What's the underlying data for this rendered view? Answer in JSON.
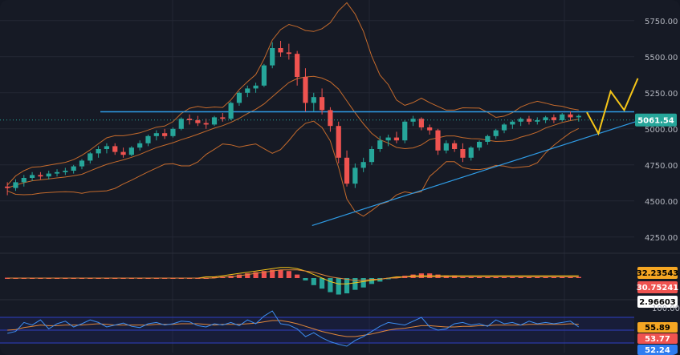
{
  "chart_data": {
    "type": "candlestick",
    "price_axis": {
      "ticks": [
        "5750.00",
        "5500.00",
        "5250.00",
        "5000.00",
        "4750.00",
        "4500.00",
        "4250.00"
      ],
      "tick_values": [
        5750,
        5500,
        5250,
        5000,
        4750,
        4500,
        4250
      ],
      "ylim": [
        4160,
        5860
      ]
    },
    "last_price_label": "5061.54",
    "last_price": 5061.54,
    "resistance_level": 5118,
    "support_trendline": {
      "from": [
        0.459,
        4330
      ],
      "to": [
        0.935,
        5050
      ]
    },
    "projection_path": [
      [
        0.863,
        5115
      ],
      [
        0.88,
        4968
      ],
      [
        0.898,
        5260
      ],
      [
        0.918,
        5130
      ],
      [
        0.938,
        5350
      ]
    ],
    "candles": [
      {
        "o": 4600,
        "h": 4630,
        "l": 4540,
        "c": 4590
      },
      {
        "o": 4590,
        "h": 4650,
        "l": 4570,
        "c": 4630
      },
      {
        "o": 4630,
        "h": 4680,
        "l": 4600,
        "c": 4660
      },
      {
        "o": 4660,
        "h": 4700,
        "l": 4640,
        "c": 4680
      },
      {
        "o": 4680,
        "h": 4700,
        "l": 4650,
        "c": 4670
      },
      {
        "o": 4670,
        "h": 4710,
        "l": 4650,
        "c": 4690
      },
      {
        "o": 4690,
        "h": 4720,
        "l": 4670,
        "c": 4700
      },
      {
        "o": 4700,
        "h": 4730,
        "l": 4680,
        "c": 4710
      },
      {
        "o": 4710,
        "h": 4750,
        "l": 4690,
        "c": 4740
      },
      {
        "o": 4740,
        "h": 4790,
        "l": 4720,
        "c": 4780
      },
      {
        "o": 4780,
        "h": 4840,
        "l": 4760,
        "c": 4830
      },
      {
        "o": 4830,
        "h": 4880,
        "l": 4800,
        "c": 4860
      },
      {
        "o": 4860,
        "h": 4900,
        "l": 4830,
        "c": 4880
      },
      {
        "o": 4880,
        "h": 4900,
        "l": 4820,
        "c": 4840
      },
      {
        "o": 4840,
        "h": 4870,
        "l": 4800,
        "c": 4820
      },
      {
        "o": 4820,
        "h": 4880,
        "l": 4810,
        "c": 4870
      },
      {
        "o": 4870,
        "h": 4920,
        "l": 4850,
        "c": 4900
      },
      {
        "o": 4900,
        "h": 4960,
        "l": 4880,
        "c": 4950
      },
      {
        "o": 4950,
        "h": 4990,
        "l": 4920,
        "c": 4970
      },
      {
        "o": 4970,
        "h": 5000,
        "l": 4930,
        "c": 4950
      },
      {
        "o": 4950,
        "h": 5010,
        "l": 4940,
        "c": 5000
      },
      {
        "o": 5000,
        "h": 5080,
        "l": 4990,
        "c": 5070
      },
      {
        "o": 5070,
        "h": 5100,
        "l": 5030,
        "c": 5060
      },
      {
        "o": 5060,
        "h": 5090,
        "l": 5020,
        "c": 5040
      },
      {
        "o": 5040,
        "h": 5070,
        "l": 5000,
        "c": 5030
      },
      {
        "o": 5030,
        "h": 5090,
        "l": 5020,
        "c": 5080
      },
      {
        "o": 5080,
        "h": 5110,
        "l": 5050,
        "c": 5070
      },
      {
        "o": 5070,
        "h": 5190,
        "l": 5060,
        "c": 5180
      },
      {
        "o": 5180,
        "h": 5260,
        "l": 5160,
        "c": 5250
      },
      {
        "o": 5250,
        "h": 5300,
        "l": 5220,
        "c": 5280
      },
      {
        "o": 5280,
        "h": 5320,
        "l": 5250,
        "c": 5300
      },
      {
        "o": 5300,
        "h": 5450,
        "l": 5290,
        "c": 5440
      },
      {
        "o": 5440,
        "h": 5600,
        "l": 5420,
        "c": 5560
      },
      {
        "o": 5560,
        "h": 5610,
        "l": 5500,
        "c": 5530
      },
      {
        "o": 5530,
        "h": 5590,
        "l": 5480,
        "c": 5520
      },
      {
        "o": 5520,
        "h": 5540,
        "l": 5300,
        "c": 5360
      },
      {
        "o": 5360,
        "h": 5420,
        "l": 5120,
        "c": 5180
      },
      {
        "o": 5180,
        "h": 5250,
        "l": 5120,
        "c": 5220
      },
      {
        "o": 5220,
        "h": 5280,
        "l": 5100,
        "c": 5130
      },
      {
        "o": 5130,
        "h": 5150,
        "l": 4980,
        "c": 5020
      },
      {
        "o": 5020,
        "h": 5050,
        "l": 4760,
        "c": 4800
      },
      {
        "o": 4800,
        "h": 4850,
        "l": 4600,
        "c": 4620
      },
      {
        "o": 4620,
        "h": 4760,
        "l": 4590,
        "c": 4730
      },
      {
        "o": 4730,
        "h": 4800,
        "l": 4700,
        "c": 4770
      },
      {
        "o": 4770,
        "h": 4880,
        "l": 4750,
        "c": 4860
      },
      {
        "o": 4860,
        "h": 4950,
        "l": 4840,
        "c": 4920
      },
      {
        "o": 4920,
        "h": 4960,
        "l": 4880,
        "c": 4940
      },
      {
        "o": 4940,
        "h": 4980,
        "l": 4900,
        "c": 4920
      },
      {
        "o": 4920,
        "h": 5060,
        "l": 4900,
        "c": 5050
      },
      {
        "o": 5050,
        "h": 5090,
        "l": 5020,
        "c": 5070
      },
      {
        "o": 5070,
        "h": 5080,
        "l": 4990,
        "c": 5010
      },
      {
        "o": 5010,
        "h": 5030,
        "l": 4960,
        "c": 4990
      },
      {
        "o": 4990,
        "h": 5000,
        "l": 4820,
        "c": 4850
      },
      {
        "o": 4850,
        "h": 4920,
        "l": 4830,
        "c": 4900
      },
      {
        "o": 4900,
        "h": 4920,
        "l": 4840,
        "c": 4860
      },
      {
        "o": 4860,
        "h": 4900,
        "l": 4770,
        "c": 4800
      },
      {
        "o": 4800,
        "h": 4880,
        "l": 4780,
        "c": 4870
      },
      {
        "o": 4870,
        "h": 4920,
        "l": 4850,
        "c": 4910
      },
      {
        "o": 4910,
        "h": 4960,
        "l": 4890,
        "c": 4950
      },
      {
        "o": 4950,
        "h": 5000,
        "l": 4930,
        "c": 4990
      },
      {
        "o": 4990,
        "h": 5040,
        "l": 4970,
        "c": 5030
      },
      {
        "o": 5030,
        "h": 5060,
        "l": 5000,
        "c": 5050
      },
      {
        "o": 5050,
        "h": 5080,
        "l": 5020,
        "c": 5070
      },
      {
        "o": 5070,
        "h": 5090,
        "l": 5030,
        "c": 5050
      },
      {
        "o": 5050,
        "h": 5080,
        "l": 5030,
        "c": 5060
      },
      {
        "o": 5060,
        "h": 5090,
        "l": 5040,
        "c": 5080
      },
      {
        "o": 5080,
        "h": 5100,
        "l": 5040,
        "c": 5060
      },
      {
        "o": 5060,
        "h": 5110,
        "l": 5050,
        "c": 5100
      },
      {
        "o": 5100,
        "h": 5120,
        "l": 5060,
        "c": 5080
      },
      {
        "o": 5080,
        "h": 5100,
        "l": 5050,
        "c": 5090
      }
    ],
    "macd": {
      "labels": [
        "32.23543",
        "30.75241",
        "2.96603"
      ],
      "histogram": [
        0,
        0,
        0,
        0,
        0,
        0,
        0,
        0,
        0,
        0,
        0,
        0,
        0,
        0,
        0,
        0,
        0,
        0,
        0,
        0,
        0,
        0,
        0,
        0,
        0,
        1,
        1,
        2,
        3,
        4,
        5,
        6,
        7,
        7,
        6,
        3,
        -2,
        -6,
        -9,
        -12,
        -14,
        -13,
        -10,
        -8,
        -5,
        -3,
        -1,
        1,
        2,
        3,
        4,
        4,
        3,
        2,
        2,
        1,
        1,
        1,
        1,
        1,
        1,
        1,
        1,
        1,
        1,
        1,
        1,
        1,
        1,
        1
      ],
      "macd_line": [
        0,
        0,
        0,
        0,
        0,
        0,
        0,
        0,
        0,
        0,
        0,
        0,
        0,
        0,
        0,
        0,
        0,
        0,
        0,
        0,
        0,
        0,
        0,
        0,
        1,
        1,
        2,
        3,
        4,
        5,
        6,
        7,
        8,
        9,
        9,
        8,
        6,
        3,
        0,
        -3,
        -5,
        -5,
        -4,
        -3,
        -2,
        -1,
        0,
        1,
        1,
        2,
        2,
        2,
        2,
        2,
        2,
        2,
        2,
        2,
        2,
        2,
        2,
        2,
        2,
        2,
        2,
        2,
        2,
        2,
        2,
        2
      ],
      "signal_line": [
        0,
        0,
        0,
        0,
        0,
        0,
        0,
        0,
        0,
        0,
        0,
        0,
        0,
        0,
        0,
        0,
        0,
        0,
        0,
        0,
        0,
        0,
        0,
        0,
        0,
        0,
        1,
        1,
        2,
        3,
        4,
        5,
        6,
        7,
        7,
        7,
        6,
        5,
        3,
        1,
        0,
        -1,
        -2,
        -2,
        -1,
        -1,
        0,
        0,
        1,
        1,
        1,
        1,
        1,
        1,
        1,
        1,
        1,
        1,
        1,
        1,
        1,
        1,
        1,
        1,
        1,
        1,
        1,
        1,
        1,
        1
      ]
    },
    "rsi": {
      "labels": [
        "100.00",
        "55.89",
        "53.77",
        "52.24"
      ],
      "levels": [
        70,
        50,
        30
      ],
      "line_blue": [
        45,
        48,
        62,
        58,
        66,
        52,
        60,
        64,
        55,
        60,
        66,
        62,
        55,
        58,
        61,
        56,
        54,
        60,
        62,
        58,
        60,
        64,
        63,
        57,
        55,
        60,
        58,
        62,
        57,
        66,
        60,
        72,
        80,
        60,
        58,
        52,
        40,
        46,
        38,
        32,
        28,
        25,
        34,
        40,
        48,
        56,
        62,
        60,
        58,
        64,
        70,
        55,
        50,
        52,
        60,
        62,
        58,
        60,
        56,
        66,
        60,
        62,
        58,
        64,
        60,
        62,
        60,
        62,
        64,
        55
      ],
      "line_orange": [
        50,
        51,
        54,
        56,
        58,
        57,
        57,
        58,
        58,
        58,
        59,
        60,
        59,
        58,
        58,
        58,
        58,
        58,
        59,
        59,
        59,
        60,
        60,
        60,
        59,
        58,
        59,
        59,
        59,
        60,
        61,
        63,
        65,
        65,
        63,
        60,
        56,
        52,
        48,
        45,
        42,
        40,
        40,
        42,
        44,
        47,
        50,
        52,
        53,
        55,
        57,
        57,
        56,
        55,
        55,
        56,
        56,
        57,
        57,
        58,
        58,
        58,
        58,
        59,
        59,
        59,
        59,
        59,
        60,
        59
      ]
    }
  }
}
